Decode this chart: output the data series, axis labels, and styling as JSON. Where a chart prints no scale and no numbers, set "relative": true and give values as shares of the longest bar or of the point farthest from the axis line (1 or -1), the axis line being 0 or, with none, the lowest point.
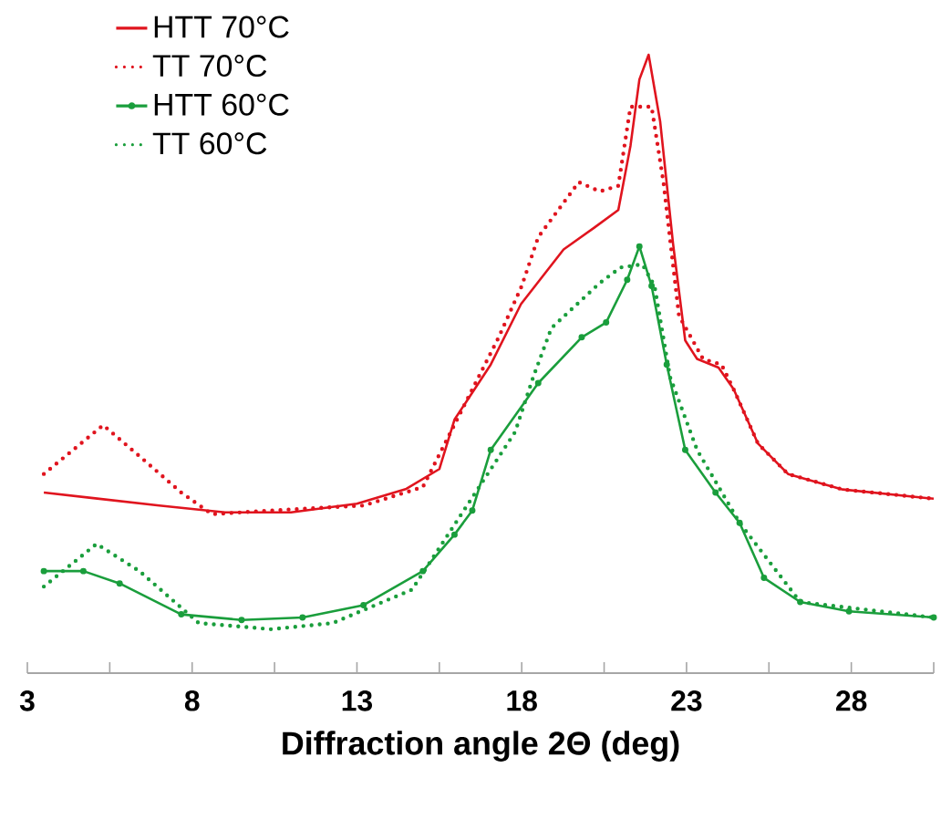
{
  "chart_data": {
    "type": "line",
    "relative": true,
    "xlabel": "Diffraction angle 2Θ (deg)",
    "xlim": [
      3,
      30.5
    ],
    "xticks": [
      3,
      {
        "value": 5.5,
        "label": null
      },
      8,
      {
        "value": 10.5,
        "label": null
      },
      13,
      {
        "value": 15.5,
        "label": null
      },
      18,
      {
        "value": 20.5,
        "label": null
      },
      23,
      {
        "value": 25.5,
        "label": null
      },
      28,
      {
        "value": 30.5,
        "label": null
      }
    ],
    "legend": "top left",
    "series": [
      {
        "name": "HTT 70°C",
        "color": "#e0141e",
        "line_style": "solid",
        "marker": "none",
        "x": [
          3.5,
          5,
          7,
          9,
          11,
          13,
          14.5,
          15.5,
          15.96,
          17.06,
          17.98,
          19.27,
          20.19,
          20.93,
          21.3,
          21.57,
          21.85,
          22.2,
          22.59,
          22.96,
          23.32,
          23.97,
          24.43,
          25.17,
          26.08,
          27.74,
          30.5
        ],
        "values": [
          0.292,
          0.283,
          0.271,
          0.26,
          0.26,
          0.274,
          0.298,
          0.33,
          0.41,
          0.499,
          0.597,
          0.685,
          0.72,
          0.749,
          0.853,
          0.96,
          1.0,
          0.892,
          0.695,
          0.538,
          0.508,
          0.494,
          0.459,
          0.371,
          0.322,
          0.297,
          0.282
        ]
      },
      {
        "name": "TT 70°C",
        "color": "#e0141e",
        "line_style": "dotted",
        "marker": "none",
        "x": [
          3.5,
          5.3,
          6.4,
          7.67,
          8.6,
          10.4,
          13.2,
          15.0,
          17.3,
          18.0,
          18.5,
          19.73,
          20.37,
          20.93,
          21.3,
          21.57,
          21.94,
          22.3,
          22.77,
          23.5,
          24.06,
          24.43,
          25.17,
          26.08,
          27.74,
          30.5
        ],
        "values": [
          0.322,
          0.401,
          0.351,
          0.292,
          0.257,
          0.263,
          0.271,
          0.301,
          0.543,
          0.626,
          0.705,
          0.794,
          0.779,
          0.788,
          0.916,
          0.916,
          0.916,
          0.794,
          0.578,
          0.508,
          0.499,
          0.459,
          0.371,
          0.322,
          0.297,
          0.282
        ]
      },
      {
        "name": "HTT 60°C",
        "color": "#1a9e3c",
        "line_style": "solid",
        "marker": "circle",
        "x": [
          3.5,
          4.7,
          5.8,
          7.67,
          9.5,
          11.35,
          13.2,
          15.0,
          15.96,
          16.5,
          17.06,
          18.5,
          19.82,
          20.56,
          21.2,
          21.57,
          21.94,
          22.4,
          22.96,
          23.88,
          24.61,
          25.35,
          26.45,
          27.93,
          30.5
        ],
        "values": [
          0.165,
          0.165,
          0.145,
          0.095,
          0.086,
          0.09,
          0.11,
          0.165,
          0.224,
          0.263,
          0.361,
          0.469,
          0.543,
          0.567,
          0.636,
          0.69,
          0.626,
          0.499,
          0.361,
          0.292,
          0.243,
          0.154,
          0.115,
          0.1,
          0.09
        ]
      },
      {
        "name": "TT 60°C",
        "color": "#1a9e3c",
        "line_style": "dotted",
        "marker": "none",
        "x": [
          3.5,
          5.1,
          6.4,
          8.2,
          10.4,
          12.27,
          14.67,
          17.8,
          18.35,
          18.9,
          20.37,
          21.0,
          21.66,
          22.03,
          22.5,
          23.32,
          24.61,
          26.45,
          30.5
        ],
        "values": [
          0.14,
          0.209,
          0.165,
          0.081,
          0.071,
          0.081,
          0.135,
          0.39,
          0.479,
          0.558,
          0.631,
          0.656,
          0.661,
          0.626,
          0.479,
          0.361,
          0.243,
          0.115,
          0.09
        ]
      }
    ]
  }
}
